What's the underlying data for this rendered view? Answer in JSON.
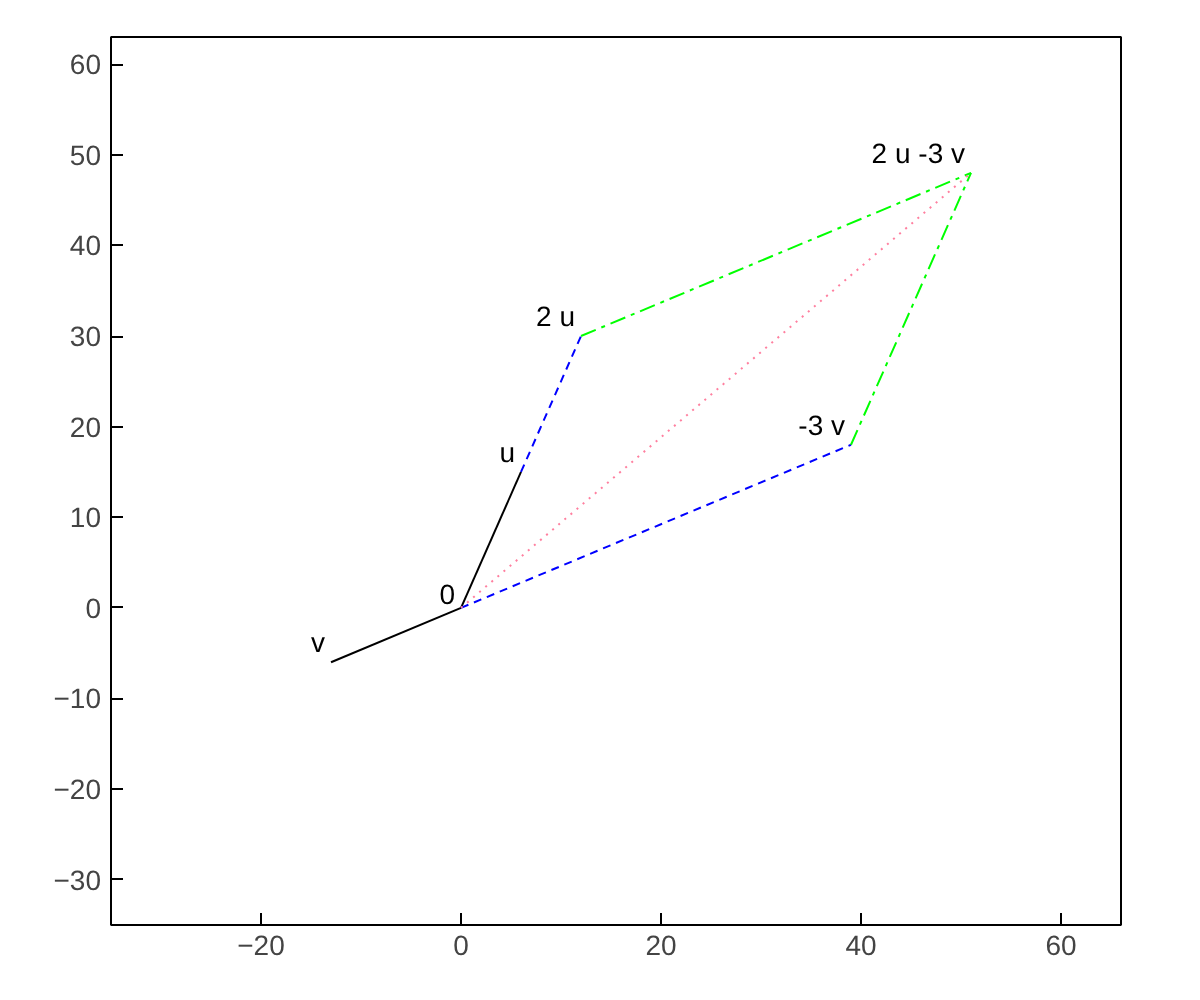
{
  "chart_data": {
    "type": "line",
    "series": [
      {
        "color": "#000000",
        "x": [
          0,
          6
        ],
        "values": [
          0,
          15
        ],
        "line_style": "solid"
      },
      {
        "color": "#000000",
        "x": [
          0,
          -13
        ],
        "values": [
          0,
          -6
        ],
        "line_style": "solid"
      },
      {
        "color": "#0000ff",
        "x": [
          6,
          12
        ],
        "values": [
          15,
          30
        ],
        "line_style": "dashed"
      },
      {
        "color": "#0000ff",
        "x": [
          0,
          39
        ],
        "values": [
          0,
          18
        ],
        "line_style": "dashed"
      },
      {
        "color": "#00ff00",
        "x": [
          12,
          51
        ],
        "values": [
          30,
          48
        ],
        "line_style": "dashdot"
      },
      {
        "color": "#00ff00",
        "x": [
          39,
          51
        ],
        "values": [
          18,
          48
        ],
        "line_style": "dashdot"
      },
      {
        "color": "#ff7f9f",
        "x": [
          0,
          51
        ],
        "values": [
          0,
          48
        ],
        "line_style": "dotted"
      }
    ],
    "annotations": [
      {
        "text": "0",
        "x": 0,
        "y": 0
      },
      {
        "text": "u",
        "x": 6,
        "y": 15
      },
      {
        "text": "v",
        "x": -13,
        "y": -6
      },
      {
        "text": "2 u",
        "x": 12,
        "y": 30
      },
      {
        "text": "-3 v",
        "x": 39,
        "y": 18
      },
      {
        "text": "2 u -3 v",
        "x": 51,
        "y": 48
      }
    ],
    "xlim": [
      -35,
      66
    ],
    "ylim": [
      -35,
      63
    ],
    "xticks": [
      -20,
      0,
      20,
      40,
      60
    ],
    "yticks": [
      -30,
      -20,
      -10,
      0,
      10,
      20,
      30,
      40,
      50,
      60
    ],
    "grid": false,
    "marker": "none"
  }
}
